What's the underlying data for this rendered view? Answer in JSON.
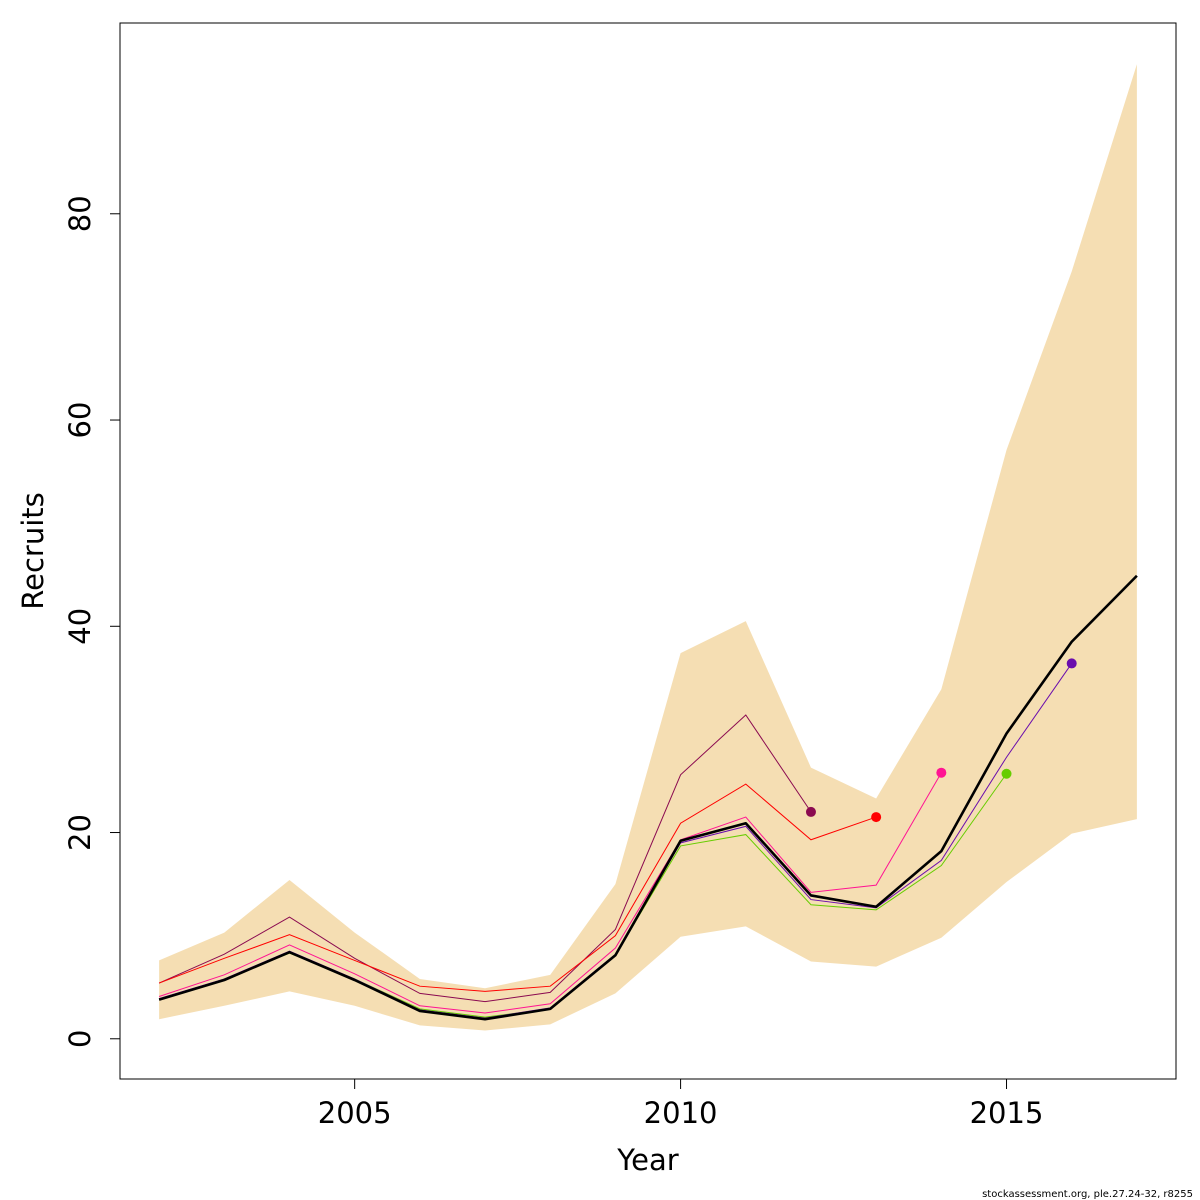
{
  "chart_data": {
    "type": "line",
    "xlabel": "Year",
    "ylabel": "Recruits",
    "xlim": [
      2001.4,
      2017.6
    ],
    "ylim": [
      -3.9,
      98.5
    ],
    "x_ticks": [
      2005,
      2010,
      2015
    ],
    "x_tick_labels": [
      "2005",
      "2010",
      "2015"
    ],
    "y_ticks": [
      0,
      20,
      40,
      60,
      80
    ],
    "y_tick_labels": [
      "0",
      "20",
      "40",
      "60",
      "80"
    ],
    "grid": false,
    "legend": "none",
    "confidence_band": {
      "color": "#F5DEB3",
      "x": [
        2002,
        2003,
        2004,
        2005,
        2006,
        2007,
        2008,
        2009,
        2010,
        2011,
        2012,
        2013,
        2014,
        2015,
        2016,
        2017
      ],
      "lower": [
        1.9,
        3.2,
        4.6,
        3.2,
        1.3,
        0.8,
        1.4,
        4.4,
        9.9,
        10.9,
        7.5,
        7.0,
        9.8,
        15.2,
        19.9,
        21.3
      ],
      "upper": [
        7.6,
        10.3,
        15.4,
        10.3,
        5.8,
        4.9,
        6.2,
        15.0,
        37.4,
        40.5,
        26.3,
        23.3,
        33.9,
        57.1,
        74.4,
        94.5
      ]
    },
    "main_series": {
      "color": "#000000",
      "x": [
        2002,
        2003,
        2004,
        2005,
        2006,
        2007,
        2008,
        2009,
        2010,
        2011,
        2012,
        2013,
        2014,
        2015,
        2016,
        2017
      ],
      "values": [
        3.8,
        5.7,
        8.4,
        5.7,
        2.7,
        1.9,
        2.9,
        8.1,
        19.2,
        20.9,
        13.9,
        12.8,
        18.2,
        29.6,
        38.5,
        44.9
      ]
    },
    "retro_series": [
      {
        "color": "#8B0A50",
        "x": [
          2002,
          2003,
          2004,
          2005,
          2006,
          2007,
          2008,
          2009,
          2010,
          2011,
          2012
        ],
        "values": [
          5.4,
          8.2,
          11.8,
          7.8,
          4.4,
          3.6,
          4.5,
          10.6,
          25.6,
          31.4,
          22.0
        ]
      },
      {
        "color": "#FF0000",
        "x": [
          2002,
          2003,
          2004,
          2005,
          2006,
          2007,
          2008,
          2009,
          2010,
          2011,
          2012,
          2013
        ],
        "values": [
          5.4,
          7.8,
          10.1,
          7.6,
          5.1,
          4.6,
          5.1,
          10.0,
          20.9,
          24.7,
          19.3,
          21.5
        ]
      },
      {
        "color": "#FF1493",
        "x": [
          2002,
          2003,
          2004,
          2005,
          2006,
          2007,
          2008,
          2009,
          2010,
          2011,
          2012,
          2013,
          2014
        ],
        "values": [
          4.1,
          6.2,
          9.1,
          6.3,
          3.2,
          2.5,
          3.4,
          8.8,
          19.3,
          21.5,
          14.2,
          14.9,
          25.8
        ]
      },
      {
        "color": "#66CD00",
        "x": [
          2002,
          2003,
          2004,
          2005,
          2006,
          2007,
          2008,
          2009,
          2010,
          2011,
          2012,
          2013,
          2014,
          2015
        ],
        "values": [
          3.8,
          5.8,
          8.3,
          5.8,
          2.9,
          2.1,
          2.9,
          8.1,
          18.7,
          19.8,
          13.0,
          12.5,
          16.8,
          25.7
        ]
      },
      {
        "color": "#6A0DAD",
        "x": [
          2002,
          2003,
          2004,
          2005,
          2006,
          2007,
          2008,
          2009,
          2010,
          2011,
          2012,
          2013,
          2014,
          2015,
          2016
        ],
        "values": [
          3.9,
          5.8,
          8.5,
          5.8,
          2.8,
          2.0,
          3.0,
          8.2,
          19.0,
          20.6,
          13.5,
          12.7,
          17.3,
          27.3,
          36.4
        ]
      }
    ]
  },
  "credit": "stockassessment.org, ple.27.24-32, r8255"
}
